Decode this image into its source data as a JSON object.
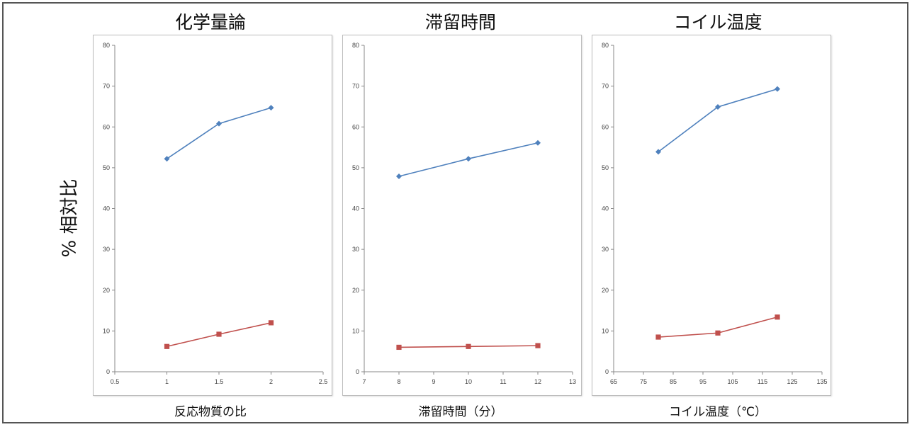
{
  "y_axis_label": "% 相対比",
  "chart_data": [
    {
      "type": "line",
      "title": "化学量論",
      "xlabel": "反応物質の比",
      "xlim": [
        0.5,
        2.5
      ],
      "xticks": [
        0.5,
        1,
        1.5,
        2,
        2.5
      ],
      "xtick_labels": [
        "0.5",
        "1",
        "1.5",
        "2",
        "2.5"
      ],
      "ylim": [
        0,
        80
      ],
      "yticks": [
        0,
        10,
        20,
        30,
        40,
        50,
        60,
        70,
        80
      ],
      "grid": false,
      "series": [
        {
          "color": "#4f81bd",
          "marker": "diamond",
          "x": [
            1,
            1.5,
            2
          ],
          "y": [
            52.2,
            60.8,
            64.7
          ]
        },
        {
          "color": "#c0504d",
          "marker": "square",
          "x": [
            1,
            1.5,
            2
          ],
          "y": [
            6.2,
            9.2,
            12.0
          ]
        }
      ]
    },
    {
      "type": "line",
      "title": "滞留時間",
      "xlabel": "滞留時間（分）",
      "xlim": [
        7,
        13
      ],
      "xticks": [
        7,
        8,
        9,
        10,
        11,
        12,
        13
      ],
      "xtick_labels": [
        "7",
        "8",
        "9",
        "10",
        "11",
        "12",
        "13"
      ],
      "ylim": [
        0,
        80
      ],
      "yticks": [
        0,
        10,
        20,
        30,
        40,
        50,
        60,
        70,
        80
      ],
      "grid": false,
      "series": [
        {
          "color": "#4f81bd",
          "marker": "diamond",
          "x": [
            8,
            10,
            12
          ],
          "y": [
            47.9,
            52.2,
            56.1
          ]
        },
        {
          "color": "#c0504d",
          "marker": "square",
          "x": [
            8,
            10,
            12
          ],
          "y": [
            6.0,
            6.2,
            6.4
          ]
        }
      ]
    },
    {
      "type": "line",
      "title": "コイル温度",
      "xlabel": "コイル温度（℃）",
      "xlim": [
        65,
        135
      ],
      "xticks": [
        65,
        75,
        85,
        95,
        105,
        115,
        125,
        135
      ],
      "xtick_labels": [
        "65",
        "75",
        "85",
        "95",
        "105",
        "115",
        "125",
        "135"
      ],
      "ylim": [
        0,
        80
      ],
      "yticks": [
        0,
        10,
        20,
        30,
        40,
        50,
        60,
        70,
        80
      ],
      "grid": false,
      "series": [
        {
          "color": "#4f81bd",
          "marker": "diamond",
          "x": [
            80,
            100,
            120
          ],
          "y": [
            53.9,
            64.9,
            69.3
          ]
        },
        {
          "color": "#c0504d",
          "marker": "square",
          "x": [
            80,
            100,
            120
          ],
          "y": [
            8.5,
            9.5,
            13.4
          ]
        }
      ]
    }
  ]
}
